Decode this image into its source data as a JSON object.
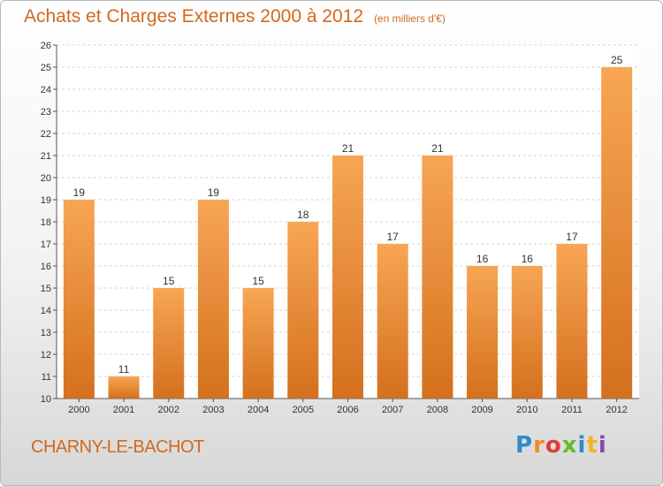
{
  "header": {
    "title": "Achats et Charges Externes 2000 à 2012",
    "subtitle": "(en milliers d'€)"
  },
  "footer": {
    "commune": "CHARNY-LE-BACHOT",
    "logo_letters": [
      "P",
      "r",
      "o",
      "x",
      "i",
      "t",
      "i"
    ]
  },
  "colors": {
    "bar_top": "#f7a654",
    "bar_bottom": "#d4701e",
    "title": "#d2691e"
  },
  "chart_data": {
    "type": "bar",
    "title": "Achats et Charges Externes 2000 à 2012",
    "subtitle": "(en milliers d'€)",
    "categories": [
      "2000",
      "2001",
      "2002",
      "2003",
      "2004",
      "2005",
      "2006",
      "2007",
      "2008",
      "2009",
      "2010",
      "2011",
      "2012"
    ],
    "values": [
      19,
      11,
      15,
      19,
      15,
      18,
      21,
      17,
      21,
      16,
      16,
      17,
      25
    ],
    "ylim": [
      10,
      26
    ],
    "yticks": [
      10,
      11,
      12,
      13,
      14,
      15,
      16,
      17,
      18,
      19,
      20,
      21,
      22,
      23,
      24,
      25,
      26
    ],
    "grid": true,
    "data_labels": true
  }
}
